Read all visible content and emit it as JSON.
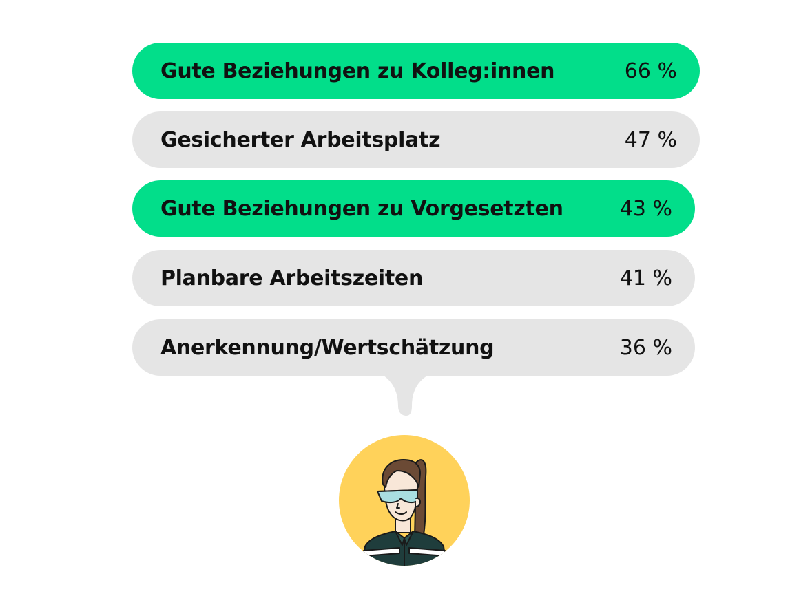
{
  "items": [
    {
      "label": "Gute Beziehungen zu Kolleg:innen",
      "value": "66 %",
      "highlight": true
    },
    {
      "label": "Gesicherter Arbeitsplatz",
      "value": "47 %",
      "highlight": false
    },
    {
      "label": "Gute Beziehungen zu Vorgesetzten",
      "value": "43 %",
      "highlight": true
    },
    {
      "label": "Planbare Arbeitszeiten",
      "value": "41 %",
      "highlight": false
    },
    {
      "label": "Anerkennung/Wertschätzung",
      "value": "36 %",
      "highlight": false
    }
  ],
  "colors": {
    "highlight": "#02DE8A",
    "neutral": "#E5E5E5",
    "avatar_bg": "#FFD25A",
    "hair": "#6B4A35",
    "jacket": "#1F3D3C",
    "skin": "#F8E7D8"
  },
  "avatar": {
    "icon": "worker-avatar-icon"
  }
}
